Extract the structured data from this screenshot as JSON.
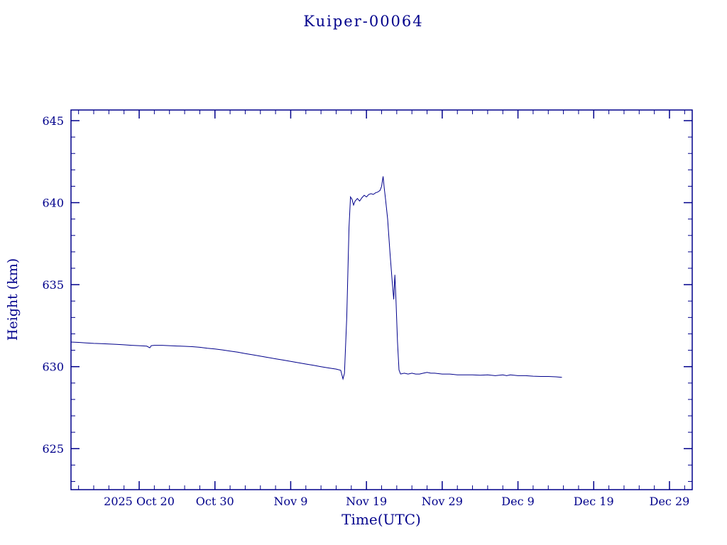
{
  "chart_data": {
    "type": "line",
    "title": "Kuiper-00064",
    "xlabel": "Time(UTC)",
    "ylabel": "Height (km)",
    "axis_color": "#00008b",
    "line_color": "#00008b",
    "x_origin_date": "2025-10-11",
    "xlim": [
      0,
      82
    ],
    "ylim": [
      622.5,
      645.65
    ],
    "x_ticks": {
      "positions": [
        9,
        19,
        29,
        39,
        49,
        59,
        69,
        79
      ],
      "labels": [
        "2025 Oct 20",
        "Oct 30",
        "Nov 9",
        "Nov 19",
        "Nov 29",
        "Dec 9",
        "Dec 19",
        "Dec 29"
      ],
      "minor_step": 2
    },
    "y_ticks": {
      "positions": [
        625,
        630,
        635,
        640,
        645
      ],
      "labels": [
        "625",
        "630",
        "635",
        "640",
        "645"
      ],
      "minor_step": 1
    },
    "series": [
      {
        "name": "height",
        "points": [
          [
            0,
            631.5
          ],
          [
            1,
            631.48
          ],
          [
            2,
            631.45
          ],
          [
            3,
            631.42
          ],
          [
            4,
            631.4
          ],
          [
            5,
            631.38
          ],
          [
            6,
            631.36
          ],
          [
            7,
            631.33
          ],
          [
            8,
            631.3
          ],
          [
            9,
            631.28
          ],
          [
            10,
            631.25
          ],
          [
            10.4,
            631.15
          ],
          [
            10.6,
            631.28
          ],
          [
            11,
            631.3
          ],
          [
            12,
            631.3
          ],
          [
            13,
            631.28
          ],
          [
            14,
            631.26
          ],
          [
            15,
            631.24
          ],
          [
            16,
            631.22
          ],
          [
            17,
            631.18
          ],
          [
            18,
            631.12
          ],
          [
            19,
            631.08
          ],
          [
            20,
            631.02
          ],
          [
            21,
            630.95
          ],
          [
            22,
            630.88
          ],
          [
            23,
            630.8
          ],
          [
            24,
            630.72
          ],
          [
            25,
            630.64
          ],
          [
            26,
            630.56
          ],
          [
            27,
            630.48
          ],
          [
            28,
            630.4
          ],
          [
            29,
            630.32
          ],
          [
            30,
            630.24
          ],
          [
            31,
            630.16
          ],
          [
            32,
            630.08
          ],
          [
            33,
            630.0
          ],
          [
            34,
            629.92
          ],
          [
            35,
            629.85
          ],
          [
            35.6,
            629.78
          ],
          [
            35.9,
            629.25
          ],
          [
            36.1,
            629.6
          ],
          [
            36.4,
            633.0
          ],
          [
            36.7,
            638.5
          ],
          [
            36.9,
            640.35
          ],
          [
            37.1,
            640.2
          ],
          [
            37.3,
            639.85
          ],
          [
            37.5,
            640.1
          ],
          [
            37.8,
            640.25
          ],
          [
            38.1,
            640.1
          ],
          [
            38.4,
            640.3
          ],
          [
            38.7,
            640.45
          ],
          [
            39.0,
            640.35
          ],
          [
            39.3,
            640.5
          ],
          [
            39.6,
            640.55
          ],
          [
            39.9,
            640.5
          ],
          [
            40.2,
            640.6
          ],
          [
            40.5,
            640.65
          ],
          [
            40.8,
            640.75
          ],
          [
            41.0,
            641.0
          ],
          [
            41.2,
            641.6
          ],
          [
            41.35,
            640.9
          ],
          [
            41.5,
            640.3
          ],
          [
            41.8,
            639.0
          ],
          [
            42.1,
            637.0
          ],
          [
            42.4,
            635.2
          ],
          [
            42.6,
            634.1
          ],
          [
            42.75,
            635.6
          ],
          [
            42.9,
            634.0
          ],
          [
            43.1,
            631.5
          ],
          [
            43.3,
            629.8
          ],
          [
            43.5,
            629.55
          ],
          [
            44,
            629.6
          ],
          [
            44.5,
            629.55
          ],
          [
            45,
            629.6
          ],
          [
            45.5,
            629.55
          ],
          [
            46,
            629.55
          ],
          [
            46.5,
            629.6
          ],
          [
            47,
            629.65
          ],
          [
            47.5,
            629.6
          ],
          [
            48,
            629.6
          ],
          [
            49,
            629.55
          ],
          [
            50,
            629.55
          ],
          [
            51,
            629.5
          ],
          [
            52,
            629.5
          ],
          [
            53,
            629.5
          ],
          [
            54,
            629.48
          ],
          [
            55,
            629.5
          ],
          [
            56,
            629.45
          ],
          [
            57,
            629.5
          ],
          [
            57.5,
            629.45
          ],
          [
            58,
            629.5
          ],
          [
            59,
            629.45
          ],
          [
            60,
            629.45
          ],
          [
            61,
            629.42
          ],
          [
            62,
            629.4
          ],
          [
            63,
            629.4
          ],
          [
            64,
            629.38
          ],
          [
            64.8,
            629.35
          ]
        ]
      }
    ]
  }
}
